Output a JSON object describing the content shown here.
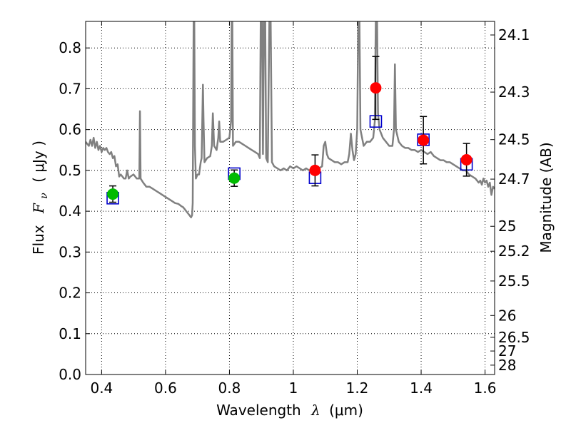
{
  "chart_data": {
    "type": "scatter",
    "xlabel_prefix": "Wavelength",
    "xlabel_symbol": "λ",
    "xlabel_unit": "(μm)",
    "ylabel_prefix": "Flux",
    "ylabel_symbol_main": "F",
    "ylabel_symbol_sub": "ν",
    "ylabel_unit": "( μJy )",
    "right_ylabel": "Magnitude (AB)",
    "xlim": [
      0.35,
      1.63
    ],
    "ylim": [
      0.0,
      0.865
    ],
    "grid": true,
    "x_ticks": [
      {
        "value": 0.4,
        "label": "0.4"
      },
      {
        "value": 0.6,
        "label": "0.6"
      },
      {
        "value": 0.8,
        "label": "0.8"
      },
      {
        "value": 1.0,
        "label": "1"
      },
      {
        "value": 1.2,
        "label": "1.2"
      },
      {
        "value": 1.4,
        "label": "1.4"
      },
      {
        "value": 1.6,
        "label": "1.6"
      }
    ],
    "y_ticks": [
      {
        "value": 0.0,
        "label": "0.0"
      },
      {
        "value": 0.1,
        "label": "0.1"
      },
      {
        "value": 0.2,
        "label": "0.2"
      },
      {
        "value": 0.3,
        "label": "0.3"
      },
      {
        "value": 0.4,
        "label": "0.4"
      },
      {
        "value": 0.5,
        "label": "0.5"
      },
      {
        "value": 0.6,
        "label": "0.6"
      },
      {
        "value": 0.7,
        "label": "0.7"
      },
      {
        "value": 0.8,
        "label": "0.8"
      }
    ],
    "right_ticks": [
      {
        "mag": 24.1,
        "label": "24.1"
      },
      {
        "mag": 24.3,
        "label": "24.3"
      },
      {
        "mag": 24.5,
        "label": "24.5"
      },
      {
        "mag": 24.7,
        "label": "24.7"
      },
      {
        "mag": 25.0,
        "label": "25"
      },
      {
        "mag": 25.2,
        "label": "25.2"
      },
      {
        "mag": 25.5,
        "label": "25.5"
      },
      {
        "mag": 26.0,
        "label": "26"
      },
      {
        "mag": 26.5,
        "label": "26.5"
      },
      {
        "mag": 27.0,
        "label": "27"
      },
      {
        "mag": 28.0,
        "label": "28"
      }
    ],
    "colors": {
      "spectrum": "#808080",
      "model": "#0000cc",
      "observed_red": "#ff0000",
      "observed_green": "#00bb00",
      "errorbar": "#000000",
      "grid": "#000000"
    },
    "spectrum": [
      [
        0.35,
        0.57
      ],
      [
        0.355,
        0.565
      ],
      [
        0.36,
        0.56
      ],
      [
        0.365,
        0.575
      ],
      [
        0.37,
        0.56
      ],
      [
        0.375,
        0.58
      ],
      [
        0.38,
        0.555
      ],
      [
        0.385,
        0.57
      ],
      [
        0.39,
        0.55
      ],
      [
        0.395,
        0.56
      ],
      [
        0.4,
        0.545
      ],
      [
        0.405,
        0.555
      ],
      [
        0.41,
        0.55
      ],
      [
        0.415,
        0.555
      ],
      [
        0.42,
        0.545
      ],
      [
        0.425,
        0.54
      ],
      [
        0.43,
        0.545
      ],
      [
        0.435,
        0.53
      ],
      [
        0.44,
        0.535
      ],
      [
        0.445,
        0.51
      ],
      [
        0.45,
        0.515
      ],
      [
        0.455,
        0.485
      ],
      [
        0.46,
        0.49
      ],
      [
        0.465,
        0.485
      ],
      [
        0.47,
        0.48
      ],
      [
        0.475,
        0.48
      ],
      [
        0.48,
        0.5
      ],
      [
        0.485,
        0.48
      ],
      [
        0.49,
        0.485
      ],
      [
        0.5,
        0.49
      ],
      [
        0.505,
        0.485
      ],
      [
        0.51,
        0.48
      ],
      [
        0.515,
        0.48
      ],
      [
        0.518,
        0.48
      ],
      [
        0.52,
        0.645
      ],
      [
        0.522,
        0.48
      ],
      [
        0.53,
        0.47
      ],
      [
        0.54,
        0.46
      ],
      [
        0.55,
        0.46
      ],
      [
        0.56,
        0.455
      ],
      [
        0.57,
        0.45
      ],
      [
        0.58,
        0.445
      ],
      [
        0.59,
        0.44
      ],
      [
        0.6,
        0.435
      ],
      [
        0.61,
        0.43
      ],
      [
        0.62,
        0.425
      ],
      [
        0.63,
        0.42
      ],
      [
        0.64,
        0.418
      ],
      [
        0.65,
        0.412
      ],
      [
        0.655,
        0.41
      ],
      [
        0.66,
        0.405
      ],
      [
        0.665,
        0.4
      ],
      [
        0.67,
        0.395
      ],
      [
        0.675,
        0.39
      ],
      [
        0.68,
        0.385
      ],
      [
        0.683,
        0.39
      ],
      [
        0.685,
        0.42
      ],
      [
        0.688,
        0.87
      ],
      [
        0.69,
        0.87
      ],
      [
        0.692,
        0.56
      ],
      [
        0.695,
        0.48
      ],
      [
        0.7,
        0.49
      ],
      [
        0.705,
        0.49
      ],
      [
        0.71,
        0.52
      ],
      [
        0.713,
        0.53
      ],
      [
        0.715,
        0.62
      ],
      [
        0.717,
        0.71
      ],
      [
        0.719,
        0.62
      ],
      [
        0.722,
        0.52
      ],
      [
        0.73,
        0.53
      ],
      [
        0.74,
        0.535
      ],
      [
        0.745,
        0.56
      ],
      [
        0.748,
        0.64
      ],
      [
        0.752,
        0.56
      ],
      [
        0.76,
        0.55
      ],
      [
        0.765,
        0.58
      ],
      [
        0.768,
        0.62
      ],
      [
        0.771,
        0.57
      ],
      [
        0.78,
        0.57
      ],
      [
        0.79,
        0.575
      ],
      [
        0.8,
        0.58
      ],
      [
        0.805,
        0.62
      ],
      [
        0.807,
        0.87
      ],
      [
        0.809,
        0.87
      ],
      [
        0.811,
        0.56
      ],
      [
        0.82,
        0.57
      ],
      [
        0.83,
        0.57
      ],
      [
        0.84,
        0.565
      ],
      [
        0.85,
        0.56
      ],
      [
        0.86,
        0.555
      ],
      [
        0.87,
        0.55
      ],
      [
        0.88,
        0.545
      ],
      [
        0.89,
        0.54
      ],
      [
        0.895,
        0.53
      ],
      [
        0.898,
        0.87
      ],
      [
        0.902,
        0.87
      ],
      [
        0.905,
        0.54
      ],
      [
        0.908,
        0.87
      ],
      [
        0.912,
        0.87
      ],
      [
        0.915,
        0.53
      ],
      [
        0.92,
        0.52
      ],
      [
        0.925,
        0.87
      ],
      [
        0.929,
        0.87
      ],
      [
        0.933,
        0.52
      ],
      [
        0.94,
        0.51
      ],
      [
        0.95,
        0.505
      ],
      [
        0.96,
        0.5
      ],
      [
        0.97,
        0.505
      ],
      [
        0.98,
        0.5
      ],
      [
        0.99,
        0.51
      ],
      [
        1.0,
        0.505
      ],
      [
        1.01,
        0.51
      ],
      [
        1.02,
        0.505
      ],
      [
        1.03,
        0.5
      ],
      [
        1.04,
        0.505
      ],
      [
        1.05,
        0.5
      ],
      [
        1.06,
        0.505
      ],
      [
        1.07,
        0.5
      ],
      [
        1.08,
        0.505
      ],
      [
        1.09,
        0.51
      ],
      [
        1.095,
        0.56
      ],
      [
        1.1,
        0.57
      ],
      [
        1.105,
        0.54
      ],
      [
        1.11,
        0.53
      ],
      [
        1.12,
        0.525
      ],
      [
        1.13,
        0.52
      ],
      [
        1.14,
        0.52
      ],
      [
        1.15,
        0.515
      ],
      [
        1.16,
        0.52
      ],
      [
        1.17,
        0.52
      ],
      [
        1.175,
        0.54
      ],
      [
        1.18,
        0.59
      ],
      [
        1.185,
        0.55
      ],
      [
        1.19,
        0.525
      ],
      [
        1.195,
        0.54
      ],
      [
        1.2,
        0.6
      ],
      [
        1.203,
        0.87
      ],
      [
        1.207,
        0.87
      ],
      [
        1.21,
        0.6
      ],
      [
        1.22,
        0.56
      ],
      [
        1.23,
        0.57
      ],
      [
        1.24,
        0.57
      ],
      [
        1.25,
        0.58
      ],
      [
        1.255,
        0.62
      ],
      [
        1.258,
        0.87
      ],
      [
        1.262,
        0.87
      ],
      [
        1.265,
        0.64
      ],
      [
        1.27,
        0.6
      ],
      [
        1.28,
        0.58
      ],
      [
        1.29,
        0.57
      ],
      [
        1.3,
        0.56
      ],
      [
        1.31,
        0.56
      ],
      [
        1.315,
        0.6
      ],
      [
        1.318,
        0.76
      ],
      [
        1.321,
        0.6
      ],
      [
        1.33,
        0.57
      ],
      [
        1.34,
        0.56
      ],
      [
        1.35,
        0.555
      ],
      [
        1.36,
        0.555
      ],
      [
        1.37,
        0.55
      ],
      [
        1.38,
        0.55
      ],
      [
        1.39,
        0.545
      ],
      [
        1.4,
        0.55
      ],
      [
        1.41,
        0.545
      ],
      [
        1.42,
        0.54
      ],
      [
        1.43,
        0.545
      ],
      [
        1.44,
        0.535
      ],
      [
        1.45,
        0.53
      ],
      [
        1.46,
        0.525
      ],
      [
        1.47,
        0.525
      ],
      [
        1.48,
        0.52
      ],
      [
        1.49,
        0.52
      ],
      [
        1.5,
        0.515
      ],
      [
        1.51,
        0.51
      ],
      [
        1.52,
        0.505
      ],
      [
        1.53,
        0.5
      ],
      [
        1.54,
        0.5
      ],
      [
        1.55,
        0.49
      ],
      [
        1.56,
        0.485
      ],
      [
        1.57,
        0.48
      ],
      [
        1.575,
        0.475
      ],
      [
        1.58,
        0.47
      ],
      [
        1.585,
        0.475
      ],
      [
        1.59,
        0.465
      ],
      [
        1.595,
        0.48
      ],
      [
        1.6,
        0.47
      ],
      [
        1.605,
        0.475
      ],
      [
        1.61,
        0.46
      ],
      [
        1.615,
        0.47
      ],
      [
        1.62,
        0.44
      ],
      [
        1.625,
        0.46
      ],
      [
        1.63,
        0.455
      ]
    ],
    "model_points": [
      {
        "x": 0.435,
        "y": 0.432
      },
      {
        "x": 0.815,
        "y": 0.492
      },
      {
        "x": 1.068,
        "y": 0.482
      },
      {
        "x": 1.258,
        "y": 0.62
      },
      {
        "x": 1.407,
        "y": 0.575
      },
      {
        "x": 1.542,
        "y": 0.515
      }
    ],
    "observed_points": [
      {
        "x": 0.435,
        "y": 0.442,
        "err": 0.02,
        "color": "#00bb00"
      },
      {
        "x": 0.815,
        "y": 0.481,
        "err": 0.02,
        "color": "#00bb00"
      },
      {
        "x": 1.068,
        "y": 0.5,
        "err": 0.038,
        "color": "#ff0000"
      },
      {
        "x": 1.258,
        "y": 0.702,
        "err": 0.077,
        "color": "#ff0000"
      },
      {
        "x": 1.407,
        "y": 0.574,
        "err": 0.058,
        "color": "#ff0000"
      },
      {
        "x": 1.542,
        "y": 0.526,
        "err": 0.04,
        "color": "#ff0000"
      }
    ]
  }
}
